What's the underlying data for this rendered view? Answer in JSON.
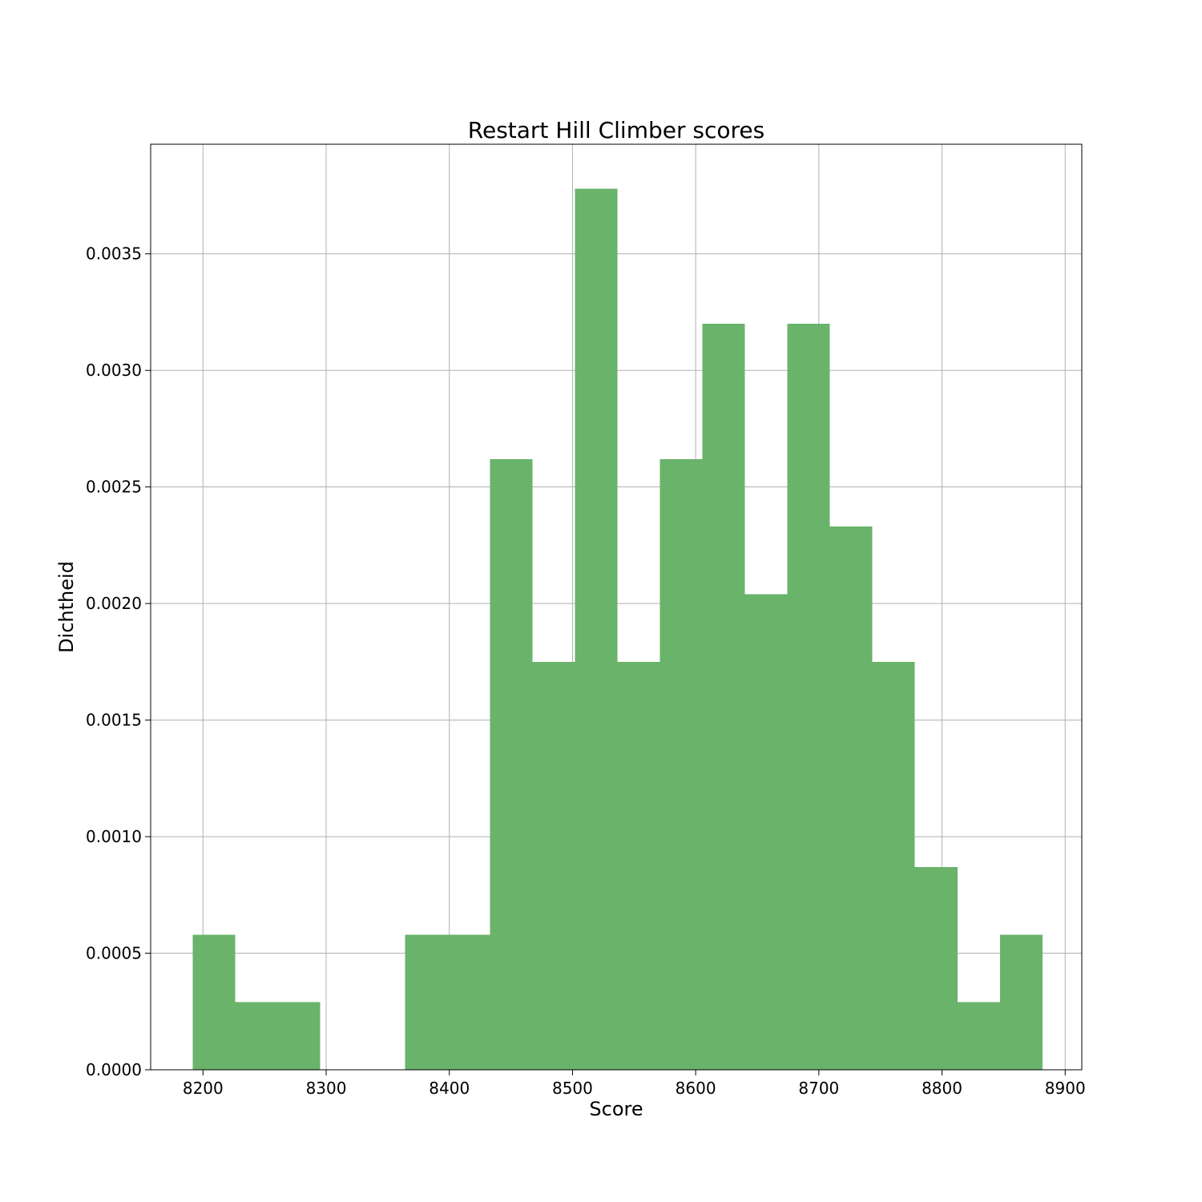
{
  "chart_data": {
    "type": "bar",
    "title": "Restart Hill Climber scores",
    "xlabel": "Score",
    "ylabel": "Dichtheid",
    "xlim": [
      8157.5,
      8913.5
    ],
    "ylim": [
      0,
      0.00397
    ],
    "xticks": [
      8200,
      8300,
      8400,
      8500,
      8600,
      8700,
      8800,
      8900
    ],
    "xtick_labels": [
      "8200",
      "8300",
      "8400",
      "8500",
      "8600",
      "8700",
      "8800",
      "8900"
    ],
    "yticks": [
      0,
      0.0005,
      0.001,
      0.0015,
      0.002,
      0.0025,
      0.003,
      0.0035
    ],
    "ytick_labels": [
      "0.0000",
      "0.0005",
      "0.0010",
      "0.0015",
      "0.0020",
      "0.0025",
      "0.0030",
      "0.0035"
    ],
    "bin_edges": [
      8191.5,
      8226,
      8260.5,
      8295,
      8329.5,
      8364,
      8398.5,
      8433,
      8467.5,
      8502,
      8536.5,
      8571,
      8605.5,
      8640,
      8674.5,
      8709,
      8743.5,
      8778,
      8812.5,
      8847,
      8881.5
    ],
    "values": [
      0.00058,
      0.00029,
      0.00029,
      0,
      0,
      0.00058,
      0.00058,
      0.00262,
      0.00175,
      0.00378,
      0.00175,
      0.00262,
      0.0032,
      0.00204,
      0.0032,
      0.00233,
      0.00175,
      0.00087,
      0.00029,
      0.00058
    ],
    "bar_color": "#6ab36a",
    "grid": true
  }
}
